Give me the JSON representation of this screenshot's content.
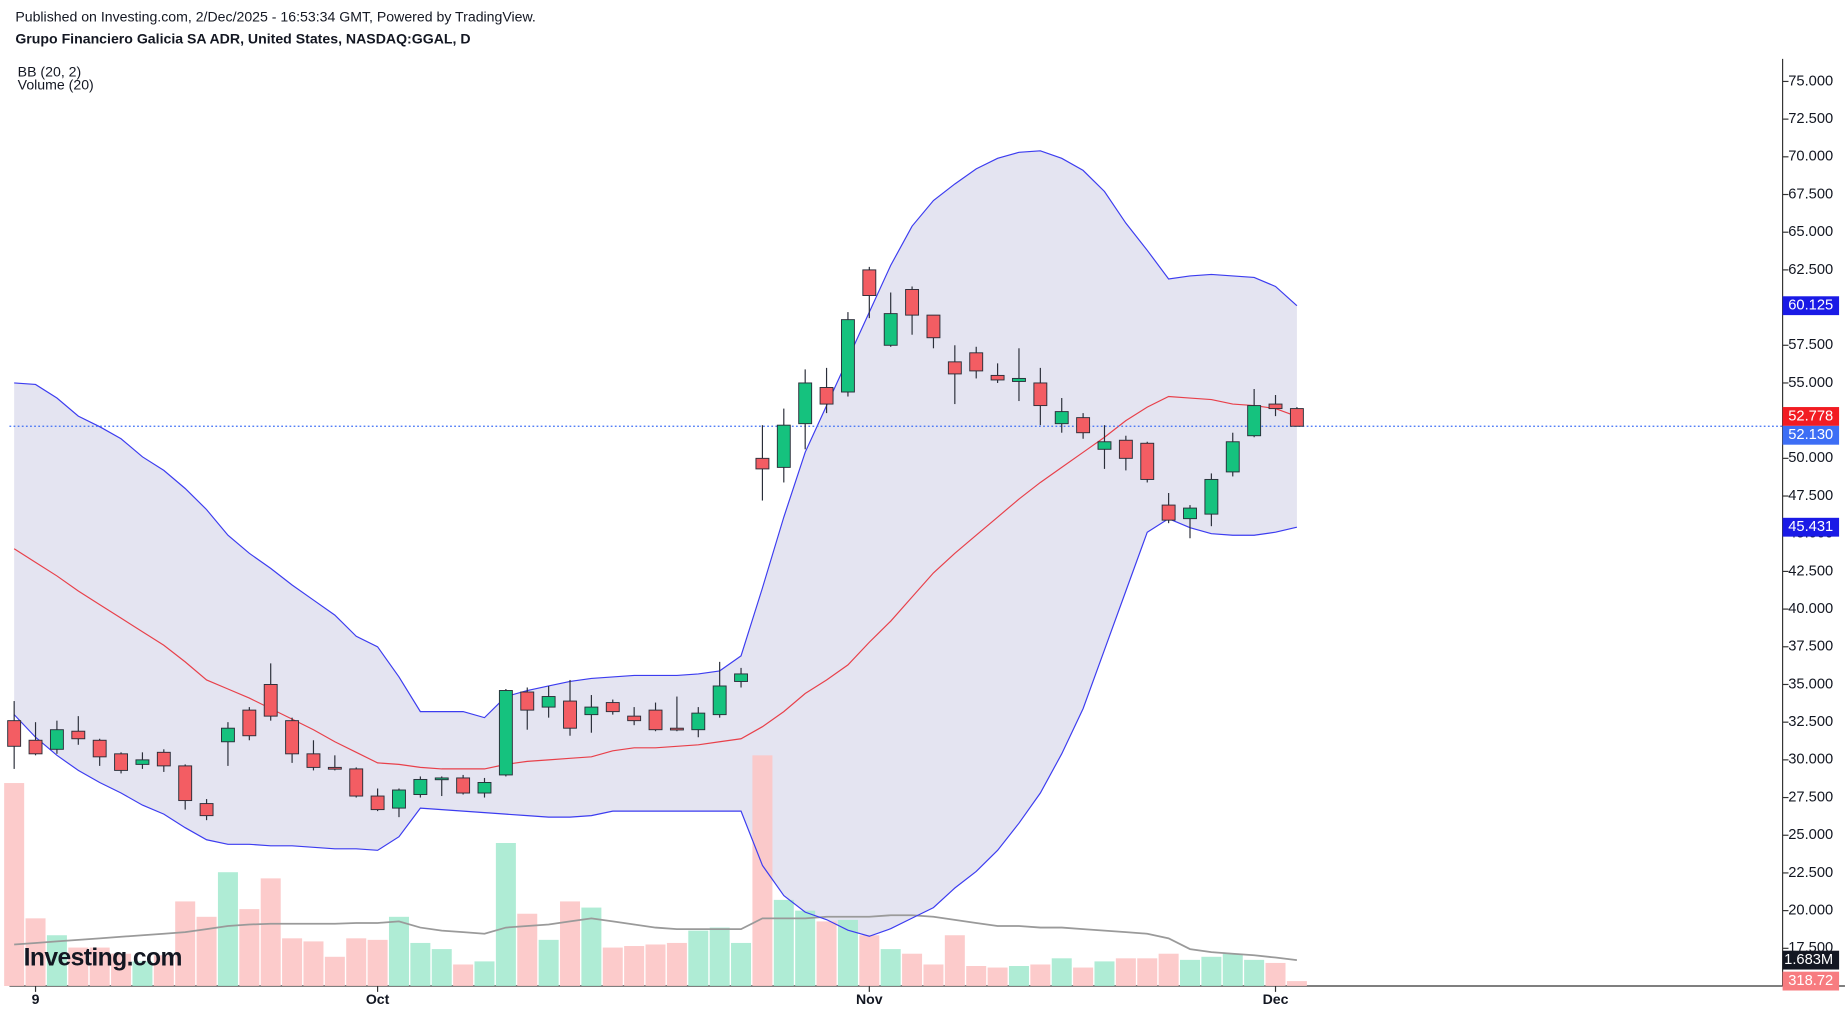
{
  "header": {
    "published": "Published on Investing.com, 2/Dec/2025 - 16:53:34 GMT, Powered by TradingView.",
    "symbol": "Grupo Financiero Galicia SA ADR, United States, NASDAQ:GGAL, D"
  },
  "logo": "Investing.com",
  "chart_data": {
    "type": "candlestick",
    "categories": [
      null,
      "9",
      null,
      null,
      null,
      null,
      null,
      null,
      null,
      null,
      null,
      null,
      null,
      null,
      null,
      null,
      null,
      "Oct",
      null,
      null,
      null,
      null,
      null,
      null,
      null,
      null,
      null,
      null,
      null,
      null,
      null,
      null,
      null,
      null,
      null,
      null,
      null,
      null,
      null,
      null,
      "Nov",
      null,
      null,
      null,
      null,
      null,
      null,
      null,
      null,
      null,
      null,
      null,
      null,
      null,
      null,
      null,
      null,
      null,
      null,
      "Dec",
      null
    ],
    "open": [
      32.6,
      31.3,
      30.7,
      31.9,
      31.3,
      30.4,
      29.7,
      30.5,
      29.6,
      27.1,
      31.2,
      33.3,
      35.0,
      32.6,
      30.4,
      29.5,
      29.4,
      27.6,
      26.8,
      27.7,
      28.7,
      28.8,
      27.8,
      29.0,
      34.5,
      33.5,
      33.9,
      33.0,
      33.8,
      32.9,
      33.3,
      32.1,
      32.0,
      33.0,
      35.2,
      50.0,
      49.4,
      52.3,
      54.7,
      54.4,
      62.5,
      57.5,
      61.2,
      59.5,
      56.4,
      57.0,
      55.5,
      55.1,
      55.0,
      52.3,
      52.7,
      50.6,
      51.2,
      51.0,
      46.9,
      46.0,
      46.3,
      49.1,
      51.5,
      53.6,
      53.3
    ],
    "high": [
      33.9,
      32.5,
      32.6,
      32.9,
      31.4,
      30.5,
      30.5,
      30.7,
      29.7,
      27.4,
      32.5,
      33.5,
      36.4,
      32.8,
      31.3,
      30.3,
      29.5,
      28.1,
      28.1,
      28.9,
      28.9,
      29.0,
      28.8,
      34.7,
      34.8,
      34.9,
      35.3,
      34.3,
      34.0,
      33.5,
      33.8,
      34.2,
      33.5,
      36.5,
      36.1,
      52.2,
      53.3,
      55.9,
      56.0,
      59.7,
      62.7,
      61.0,
      61.4,
      59.5,
      57.5,
      57.4,
      56.3,
      57.3,
      56.0,
      54.0,
      53.0,
      52.2,
      51.5,
      51.1,
      47.7,
      46.9,
      49.0,
      51.7,
      54.6,
      54.2,
      53.4
    ],
    "low": [
      29.4,
      30.3,
      30.4,
      31.0,
      29.6,
      29.1,
      29.4,
      29.2,
      26.7,
      26.0,
      29.6,
      31.3,
      32.6,
      29.8,
      29.3,
      29.3,
      27.5,
      26.6,
      26.2,
      27.5,
      27.6,
      27.7,
      27.5,
      28.9,
      32.0,
      32.8,
      31.6,
      31.8,
      33.0,
      32.3,
      31.9,
      31.9,
      31.5,
      32.8,
      34.8,
      47.2,
      48.4,
      50.6,
      53.0,
      54.1,
      59.3,
      57.4,
      58.2,
      57.3,
      53.6,
      55.3,
      55.0,
      53.8,
      52.2,
      51.7,
      51.3,
      49.3,
      49.2,
      48.4,
      45.7,
      44.7,
      45.5,
      48.8,
      51.4,
      52.8,
      52.1
    ],
    "close": [
      30.9,
      30.4,
      32.0,
      31.4,
      30.2,
      29.3,
      30.0,
      29.6,
      27.3,
      26.3,
      32.1,
      31.6,
      32.9,
      30.4,
      29.5,
      29.4,
      27.6,
      26.7,
      28.0,
      28.7,
      28.8,
      27.8,
      28.5,
      34.6,
      33.3,
      34.2,
      32.1,
      33.5,
      33.2,
      32.6,
      32.0,
      32.0,
      33.1,
      34.9,
      35.7,
      49.3,
      52.2,
      55.0,
      53.6,
      59.2,
      60.8,
      59.6,
      59.5,
      58.0,
      55.6,
      55.8,
      55.2,
      55.3,
      53.5,
      53.1,
      51.7,
      51.1,
      50.0,
      48.6,
      45.9,
      46.7,
      48.6,
      51.1,
      53.5,
      53.3,
      52.13
    ],
    "up_color": "#15c27e",
    "down_color": "#f35d63",
    "bb": {
      "name": "BB (20, 2)",
      "band_color": "#3c3cf0",
      "basis_color": "#e8404a",
      "fill": "#e4e4f1",
      "upper": [
        55.0,
        54.9,
        54.0,
        52.8,
        52.1,
        51.3,
        50.1,
        49.2,
        48.0,
        46.6,
        44.9,
        43.7,
        42.7,
        41.6,
        40.6,
        39.6,
        38.2,
        37.5,
        35.5,
        33.2,
        33.2,
        33.2,
        32.8,
        34.2,
        34.6,
        34.9,
        35.2,
        35.4,
        35.5,
        35.6,
        35.6,
        35.6,
        35.7,
        35.9,
        36.9,
        41.4,
        46.1,
        50.4,
        53.5,
        56.6,
        59.7,
        62.8,
        65.4,
        67.1,
        68.2,
        69.2,
        69.9,
        70.3,
        70.4,
        69.9,
        69.1,
        67.7,
        65.6,
        63.8,
        61.9,
        62.1,
        62.2,
        62.1,
        62.0,
        61.4,
        60.125
      ],
      "basis": [
        44.0,
        43.1,
        42.2,
        41.2,
        40.3,
        39.4,
        38.5,
        37.6,
        36.5,
        35.3,
        34.7,
        34.1,
        33.4,
        32.7,
        32.0,
        31.2,
        30.5,
        29.8,
        29.7,
        29.5,
        29.4,
        29.4,
        29.4,
        29.7,
        29.9,
        30.0,
        30.1,
        30.2,
        30.6,
        30.8,
        30.8,
        30.9,
        31.0,
        31.2,
        31.4,
        32.2,
        33.2,
        34.4,
        35.3,
        36.3,
        37.8,
        39.2,
        40.8,
        42.4,
        43.7,
        44.9,
        46.1,
        47.3,
        48.4,
        49.4,
        50.4,
        51.4,
        52.5,
        53.4,
        54.1,
        54.0,
        53.9,
        53.6,
        53.5,
        53.3,
        52.778
      ],
      "lower": [
        33.0,
        31.5,
        30.3,
        29.3,
        28.5,
        27.8,
        27.0,
        26.4,
        25.5,
        24.7,
        24.4,
        24.4,
        24.3,
        24.3,
        24.2,
        24.1,
        24.1,
        24.0,
        24.9,
        26.8,
        26.7,
        26.6,
        26.5,
        26.4,
        26.3,
        26.2,
        26.2,
        26.3,
        26.6,
        26.6,
        26.6,
        26.6,
        26.6,
        26.6,
        26.6,
        23.0,
        21.0,
        19.9,
        19.4,
        18.7,
        18.3,
        18.8,
        19.5,
        20.2,
        21.5,
        22.6,
        24.0,
        25.8,
        27.8,
        30.4,
        33.4,
        37.3,
        41.2,
        45.1,
        46.0,
        45.4,
        45.0,
        44.9,
        44.9,
        45.1,
        45.431
      ]
    },
    "volume": {
      "name": "Volume (20)",
      "axis": "y2",
      "up_color": "#a6ead0",
      "down_color": "#fcc5c5",
      "ma_color": "#9a9a9a",
      "values": [
        13.2,
        4.4,
        3.3,
        2.5,
        2.5,
        2.1,
        1.6,
        2.0,
        5.5,
        4.5,
        7.4,
        5.0,
        7.0,
        3.1,
        2.9,
        1.9,
        3.1,
        3.0,
        4.5,
        2.8,
        2.4,
        1.4,
        1.6,
        9.3,
        4.7,
        3.0,
        5.5,
        5.1,
        2.5,
        2.6,
        2.7,
        2.8,
        3.6,
        3.8,
        2.8,
        15.0,
        5.6,
        4.9,
        4.2,
        4.3,
        3.3,
        2.4,
        2.1,
        1.4,
        3.3,
        1.3,
        1.2,
        1.3,
        1.4,
        1.8,
        1.2,
        1.6,
        1.8,
        1.8,
        2.1,
        1.7,
        1.9,
        2.1,
        1.7,
        1.5,
        0.31872
      ],
      "ma": [
        2.7,
        2.8,
        2.9,
        3.0,
        3.1,
        3.2,
        3.3,
        3.4,
        3.5,
        3.7,
        3.9,
        4.0,
        4.05,
        4.05,
        4.05,
        4.05,
        4.1,
        4.1,
        4.2,
        3.8,
        3.6,
        3.5,
        3.4,
        3.8,
        3.9,
        4.0,
        4.2,
        4.4,
        4.2,
        4.0,
        3.8,
        3.7,
        3.7,
        3.7,
        3.7,
        4.4,
        4.4,
        4.4,
        4.5,
        4.5,
        4.5,
        4.6,
        4.6,
        4.5,
        4.3,
        4.1,
        3.9,
        3.9,
        3.8,
        3.8,
        3.7,
        3.6,
        3.5,
        3.4,
        3.1,
        2.4,
        2.2,
        2.1,
        2.0,
        1.85,
        1.683
      ],
      "value_tags": [
        {
          "value": 1.683,
          "label": "1.683M",
          "color": "#131722"
        },
        {
          "value": 0.31872,
          "label": "318.72",
          "color": "#f77c80"
        }
      ]
    },
    "ylim": [
      15,
      76.5
    ],
    "y2lim": [
      0,
      60.3
    ],
    "yticks": [
      {
        "value": 17.5,
        "label": "17.500"
      },
      {
        "value": 20,
        "label": "20.000"
      },
      {
        "value": 22.5,
        "label": "22.500"
      },
      {
        "value": 25,
        "label": "25.000"
      },
      {
        "value": 27.5,
        "label": "27.500"
      },
      {
        "value": 30,
        "label": "30.000"
      },
      {
        "value": 32.5,
        "label": "32.500"
      },
      {
        "value": 35,
        "label": "35.000"
      },
      {
        "value": 37.5,
        "label": "37.500"
      },
      {
        "value": 40,
        "label": "40.000"
      },
      {
        "value": 42.5,
        "label": "42.500"
      },
      {
        "value": 45,
        "label": "45.000"
      },
      {
        "value": 47.5,
        "label": "47.500"
      },
      {
        "value": 50,
        "label": "50.000"
      },
      {
        "value": 52.5,
        "label": "52.500"
      },
      {
        "value": 55,
        "label": "55.000"
      },
      {
        "value": 57.5,
        "label": "57.500"
      },
      {
        "value": 60,
        "label": "60.000"
      },
      {
        "value": 62.5,
        "label": "62.500"
      },
      {
        "value": 65,
        "label": "65.000"
      },
      {
        "value": 67.5,
        "label": "67.500"
      },
      {
        "value": 70,
        "label": "70.000"
      },
      {
        "value": 72.5,
        "label": "72.500"
      },
      {
        "value": 75,
        "label": "75.000"
      }
    ],
    "price_tags": [
      {
        "value": 60.125,
        "color": "#1a1ae6"
      },
      {
        "value": 52.778,
        "color": "#f21c23"
      },
      {
        "value": 52.13,
        "label": "52.130",
        "color": "#3d6ef5"
      },
      {
        "value": 45.431,
        "color": "#1a1ae6"
      }
    ],
    "last_line_color": "#3d6ef5"
  }
}
